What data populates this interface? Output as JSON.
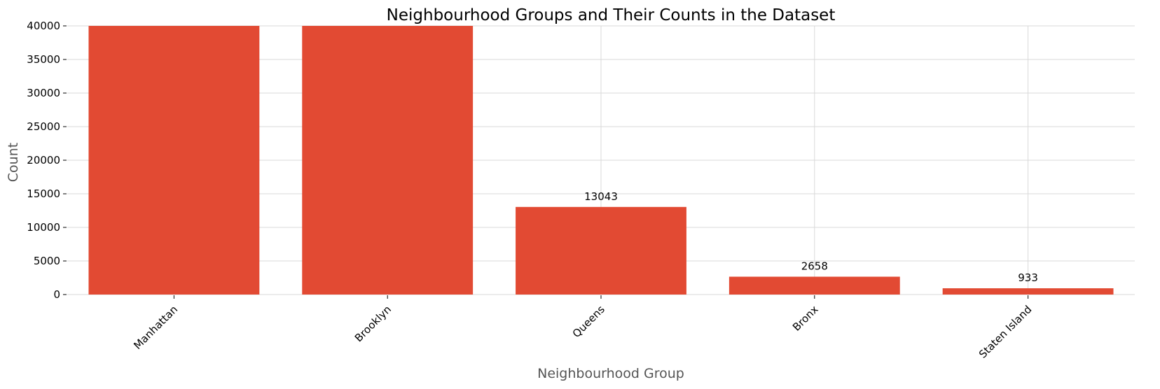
{
  "chart_data": {
    "type": "bar",
    "title": "Neighbourhood Groups and Their Counts in the Dataset",
    "xlabel": "Neighbourhood Group",
    "ylabel": "Count",
    "categories": [
      "Manhattan",
      "Brooklyn",
      "Queens",
      "Bronx",
      "Staten Island"
    ],
    "values": [
      40000,
      40000,
      13043,
      2658,
      933
    ],
    "data_labels": [
      "",
      "",
      "13043",
      "2658",
      "933"
    ],
    "ylim": [
      0,
      40000
    ],
    "yticks": [
      0,
      5000,
      10000,
      15000,
      20000,
      25000,
      30000,
      35000,
      40000
    ],
    "grid": true,
    "legend": "none",
    "bar_color": "#e24a33",
    "grid_color": "#d9d9d9"
  }
}
